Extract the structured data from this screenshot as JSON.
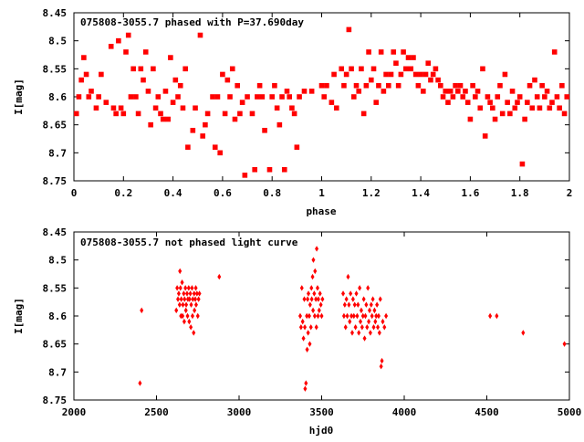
{
  "chart_data": [
    {
      "type": "scatter",
      "title": "075808-3055.7 phased with P=37.690day",
      "xlabel": "phase",
      "ylabel": "I[mag]",
      "xlim": [
        0,
        2
      ],
      "ylim": [
        8.45,
        8.75
      ],
      "y_inverted": true,
      "xticks": [
        "0",
        "0.2",
        "0.4",
        "0.6",
        "0.8",
        "1",
        "1.2",
        "1.4",
        "1.6",
        "1.8",
        "2"
      ],
      "yticks": [
        "8.45",
        "8.5",
        "8.55",
        "8.6",
        "8.65",
        "8.7",
        "8.75"
      ],
      "marker": "filled-square",
      "color": "#ff0000",
      "points": [
        [
          0.01,
          8.63
        ],
        [
          0.02,
          8.6
        ],
        [
          0.03,
          8.57
        ],
        [
          0.04,
          8.53
        ],
        [
          0.05,
          8.56
        ],
        [
          0.06,
          8.6
        ],
        [
          0.07,
          8.59
        ],
        [
          0.09,
          8.62
        ],
        [
          0.1,
          8.6
        ],
        [
          0.11,
          8.56
        ],
        [
          0.13,
          8.61
        ],
        [
          0.15,
          8.51
        ],
        [
          0.16,
          8.62
        ],
        [
          0.17,
          8.63
        ],
        [
          0.18,
          8.5
        ],
        [
          0.19,
          8.62
        ],
        [
          0.2,
          8.63
        ],
        [
          0.21,
          8.52
        ],
        [
          0.22,
          8.49
        ],
        [
          0.23,
          8.6
        ],
        [
          0.24,
          8.55
        ],
        [
          0.25,
          8.6
        ],
        [
          0.26,
          8.63
        ],
        [
          0.27,
          8.55
        ],
        [
          0.28,
          8.57
        ],
        [
          0.29,
          8.52
        ],
        [
          0.3,
          8.59
        ],
        [
          0.31,
          8.65
        ],
        [
          0.32,
          8.55
        ],
        [
          0.33,
          8.62
        ],
        [
          0.34,
          8.6
        ],
        [
          0.35,
          8.63
        ],
        [
          0.36,
          8.64
        ],
        [
          0.37,
          8.59
        ],
        [
          0.38,
          8.64
        ],
        [
          0.39,
          8.53
        ],
        [
          0.4,
          8.61
        ],
        [
          0.41,
          8.57
        ],
        [
          0.42,
          8.6
        ],
        [
          0.43,
          8.58
        ],
        [
          0.44,
          8.62
        ],
        [
          0.45,
          8.55
        ],
        [
          0.46,
          8.69
        ],
        [
          0.48,
          8.66
        ],
        [
          0.49,
          8.62
        ],
        [
          0.51,
          8.49
        ],
        [
          0.52,
          8.67
        ],
        [
          0.53,
          8.65
        ],
        [
          0.54,
          8.63
        ],
        [
          0.56,
          8.6
        ],
        [
          0.57,
          8.69
        ],
        [
          0.58,
          8.6
        ],
        [
          0.59,
          8.7
        ],
        [
          0.6,
          8.56
        ],
        [
          0.61,
          8.63
        ],
        [
          0.62,
          8.57
        ],
        [
          0.63,
          8.6
        ],
        [
          0.64,
          8.55
        ],
        [
          0.65,
          8.64
        ],
        [
          0.66,
          8.58
        ],
        [
          0.67,
          8.63
        ],
        [
          0.68,
          8.61
        ],
        [
          0.69,
          8.74
        ],
        [
          0.7,
          8.6
        ],
        [
          0.72,
          8.63
        ],
        [
          0.73,
          8.73
        ],
        [
          0.74,
          8.6
        ],
        [
          0.75,
          8.58
        ],
        [
          0.76,
          8.6
        ],
        [
          0.77,
          8.66
        ],
        [
          0.79,
          8.73
        ],
        [
          0.8,
          8.6
        ],
        [
          0.81,
          8.58
        ],
        [
          0.82,
          8.62
        ],
        [
          0.83,
          8.65
        ],
        [
          0.84,
          8.6
        ],
        [
          0.85,
          8.73
        ],
        [
          0.86,
          8.59
        ],
        [
          0.87,
          8.6
        ],
        [
          0.88,
          8.62
        ],
        [
          0.89,
          8.63
        ],
        [
          0.9,
          8.69
        ],
        [
          0.91,
          8.6
        ],
        [
          0.93,
          8.59
        ],
        [
          0.96,
          8.59
        ],
        [
          1.0,
          8.58
        ],
        [
          1.01,
          8.6
        ],
        [
          1.02,
          8.58
        ],
        [
          1.04,
          8.61
        ],
        [
          1.05,
          8.56
        ],
        [
          1.06,
          8.62
        ],
        [
          1.08,
          8.55
        ],
        [
          1.09,
          8.58
        ],
        [
          1.1,
          8.56
        ],
        [
          1.11,
          8.48
        ],
        [
          1.12,
          8.55
        ],
        [
          1.13,
          8.6
        ],
        [
          1.14,
          8.58
        ],
        [
          1.15,
          8.59
        ],
        [
          1.16,
          8.55
        ],
        [
          1.17,
          8.63
        ],
        [
          1.18,
          8.58
        ],
        [
          1.19,
          8.52
        ],
        [
          1.2,
          8.57
        ],
        [
          1.21,
          8.55
        ],
        [
          1.22,
          8.61
        ],
        [
          1.23,
          8.58
        ],
        [
          1.24,
          8.52
        ],
        [
          1.25,
          8.59
        ],
        [
          1.26,
          8.56
        ],
        [
          1.27,
          8.58
        ],
        [
          1.28,
          8.56
        ],
        [
          1.29,
          8.52
        ],
        [
          1.3,
          8.54
        ],
        [
          1.31,
          8.58
        ],
        [
          1.32,
          8.56
        ],
        [
          1.33,
          8.52
        ],
        [
          1.34,
          8.55
        ],
        [
          1.35,
          8.53
        ],
        [
          1.36,
          8.55
        ],
        [
          1.37,
          8.53
        ],
        [
          1.38,
          8.56
        ],
        [
          1.39,
          8.58
        ],
        [
          1.4,
          8.56
        ],
        [
          1.41,
          8.59
        ],
        [
          1.42,
          8.56
        ],
        [
          1.43,
          8.54
        ],
        [
          1.44,
          8.57
        ],
        [
          1.45,
          8.56
        ],
        [
          1.46,
          8.55
        ],
        [
          1.47,
          8.57
        ],
        [
          1.48,
          8.58
        ],
        [
          1.49,
          8.6
        ],
        [
          1.5,
          8.59
        ],
        [
          1.51,
          8.61
        ],
        [
          1.52,
          8.59
        ],
        [
          1.53,
          8.6
        ],
        [
          1.54,
          8.58
        ],
        [
          1.55,
          8.59
        ],
        [
          1.56,
          8.58
        ],
        [
          1.57,
          8.6
        ],
        [
          1.58,
          8.59
        ],
        [
          1.59,
          8.61
        ],
        [
          1.6,
          8.64
        ],
        [
          1.61,
          8.58
        ],
        [
          1.62,
          8.6
        ],
        [
          1.63,
          8.59
        ],
        [
          1.64,
          8.62
        ],
        [
          1.65,
          8.55
        ],
        [
          1.66,
          8.67
        ],
        [
          1.67,
          8.6
        ],
        [
          1.68,
          8.61
        ],
        [
          1.69,
          8.62
        ],
        [
          1.7,
          8.64
        ],
        [
          1.71,
          8.6
        ],
        [
          1.72,
          8.58
        ],
        [
          1.73,
          8.63
        ],
        [
          1.74,
          8.56
        ],
        [
          1.75,
          8.61
        ],
        [
          1.76,
          8.63
        ],
        [
          1.77,
          8.59
        ],
        [
          1.78,
          8.62
        ],
        [
          1.79,
          8.61
        ],
        [
          1.8,
          8.6
        ],
        [
          1.81,
          8.72
        ],
        [
          1.82,
          8.64
        ],
        [
          1.83,
          8.61
        ],
        [
          1.84,
          8.58
        ],
        [
          1.85,
          8.62
        ],
        [
          1.86,
          8.57
        ],
        [
          1.87,
          8.6
        ],
        [
          1.88,
          8.62
        ],
        [
          1.89,
          8.58
        ],
        [
          1.9,
          8.6
        ],
        [
          1.91,
          8.59
        ],
        [
          1.92,
          8.62
        ],
        [
          1.93,
          8.61
        ],
        [
          1.94,
          8.52
        ],
        [
          1.95,
          8.6
        ],
        [
          1.96,
          8.62
        ],
        [
          1.97,
          8.58
        ],
        [
          1.98,
          8.63
        ],
        [
          1.99,
          8.6
        ]
      ]
    },
    {
      "type": "scatter",
      "title": "075808-3055.7 not phased light curve",
      "xlabel": "hjd0",
      "ylabel": "I[mag]",
      "xlim": [
        2000,
        5000
      ],
      "ylim": [
        8.45,
        8.75
      ],
      "y_inverted": true,
      "xticks": [
        "2000",
        "2500",
        "3000",
        "3500",
        "4000",
        "4500",
        "5000"
      ],
      "yticks": [
        "8.45",
        "8.5",
        "8.55",
        "8.6",
        "8.65",
        "8.7",
        "8.75"
      ],
      "marker": "filled-diamond",
      "color": "#ff0000",
      "points": [
        [
          2400,
          8.72
        ],
        [
          2410,
          8.59
        ],
        [
          2620,
          8.59
        ],
        [
          2625,
          8.55
        ],
        [
          2630,
          8.57
        ],
        [
          2635,
          8.56
        ],
        [
          2640,
          8.58
        ],
        [
          2642,
          8.52
        ],
        [
          2645,
          8.55
        ],
        [
          2648,
          8.6
        ],
        [
          2650,
          8.57
        ],
        [
          2655,
          8.54
        ],
        [
          2658,
          8.6
        ],
        [
          2660,
          8.58
        ],
        [
          2665,
          8.56
        ],
        [
          2668,
          8.61
        ],
        [
          2670,
          8.57
        ],
        [
          2675,
          8.55
        ],
        [
          2678,
          8.59
        ],
        [
          2680,
          8.58
        ],
        [
          2685,
          8.56
        ],
        [
          2688,
          8.6
        ],
        [
          2690,
          8.57
        ],
        [
          2695,
          8.55
        ],
        [
          2698,
          8.61
        ],
        [
          2700,
          8.57
        ],
        [
          2705,
          8.56
        ],
        [
          2708,
          8.62
        ],
        [
          2710,
          8.58
        ],
        [
          2715,
          8.55
        ],
        [
          2718,
          8.6
        ],
        [
          2720,
          8.57
        ],
        [
          2725,
          8.63
        ],
        [
          2728,
          8.56
        ],
        [
          2730,
          8.59
        ],
        [
          2735,
          8.57
        ],
        [
          2738,
          8.55
        ],
        [
          2740,
          8.58
        ],
        [
          2745,
          8.56
        ],
        [
          2750,
          8.6
        ],
        [
          2755,
          8.57
        ],
        [
          2760,
          8.56
        ],
        [
          2880,
          8.53
        ],
        [
          3370,
          8.6
        ],
        [
          3375,
          8.62
        ],
        [
          3380,
          8.55
        ],
        [
          3385,
          8.61
        ],
        [
          3390,
          8.64
        ],
        [
          3395,
          8.57
        ],
        [
          3398,
          8.62
        ],
        [
          3400,
          8.73
        ],
        [
          3405,
          8.72
        ],
        [
          3410,
          8.6
        ],
        [
          3412,
          8.66
        ],
        [
          3415,
          8.57
        ],
        [
          3418,
          8.63
        ],
        [
          3420,
          8.56
        ],
        [
          3425,
          8.6
        ],
        [
          3428,
          8.65
        ],
        [
          3430,
          8.58
        ],
        [
          3435,
          8.62
        ],
        [
          3438,
          8.55
        ],
        [
          3440,
          8.57
        ],
        [
          3445,
          8.53
        ],
        [
          3448,
          8.59
        ],
        [
          3450,
          8.5
        ],
        [
          3455,
          8.56
        ],
        [
          3458,
          8.6
        ],
        [
          3460,
          8.52
        ],
        [
          3465,
          8.57
        ],
        [
          3468,
          8.62
        ],
        [
          3470,
          8.48
        ],
        [
          3475,
          8.55
        ],
        [
          3478,
          8.6
        ],
        [
          3480,
          8.57
        ],
        [
          3485,
          8.59
        ],
        [
          3490,
          8.56
        ],
        [
          3495,
          8.58
        ],
        [
          3500,
          8.6
        ],
        [
          3505,
          8.57
        ],
        [
          3630,
          8.56
        ],
        [
          3635,
          8.6
        ],
        [
          3640,
          8.58
        ],
        [
          3645,
          8.62
        ],
        [
          3650,
          8.57
        ],
        [
          3655,
          8.6
        ],
        [
          3660,
          8.53
        ],
        [
          3665,
          8.58
        ],
        [
          3670,
          8.61
        ],
        [
          3675,
          8.56
        ],
        [
          3680,
          8.6
        ],
        [
          3685,
          8.63
        ],
        [
          3690,
          8.57
        ],
        [
          3695,
          8.6
        ],
        [
          3700,
          8.58
        ],
        [
          3705,
          8.62
        ],
        [
          3710,
          8.56
        ],
        [
          3715,
          8.6
        ],
        [
          3720,
          8.58
        ],
        [
          3725,
          8.63
        ],
        [
          3730,
          8.55
        ],
        [
          3735,
          8.61
        ],
        [
          3740,
          8.59
        ],
        [
          3745,
          8.62
        ],
        [
          3750,
          8.6
        ],
        [
          3755,
          8.57
        ],
        [
          3760,
          8.64
        ],
        [
          3765,
          8.6
        ],
        [
          3770,
          8.58
        ],
        [
          3775,
          8.62
        ],
        [
          3780,
          8.55
        ],
        [
          3785,
          8.61
        ],
        [
          3790,
          8.59
        ],
        [
          3795,
          8.63
        ],
        [
          3800,
          8.58
        ],
        [
          3805,
          8.6
        ],
        [
          3810,
          8.57
        ],
        [
          3815,
          8.62
        ],
        [
          3820,
          8.59
        ],
        [
          3825,
          8.61
        ],
        [
          3830,
          8.6
        ],
        [
          3835,
          8.58
        ],
        [
          3840,
          8.62
        ],
        [
          3845,
          8.6
        ],
        [
          3850,
          8.63
        ],
        [
          3855,
          8.57
        ],
        [
          3860,
          8.69
        ],
        [
          3865,
          8.68
        ],
        [
          3870,
          8.61
        ],
        [
          3880,
          8.62
        ],
        [
          3890,
          8.6
        ],
        [
          4520,
          8.6
        ],
        [
          4560,
          8.6
        ],
        [
          4720,
          8.63
        ],
        [
          4970,
          8.65
        ]
      ]
    }
  ]
}
